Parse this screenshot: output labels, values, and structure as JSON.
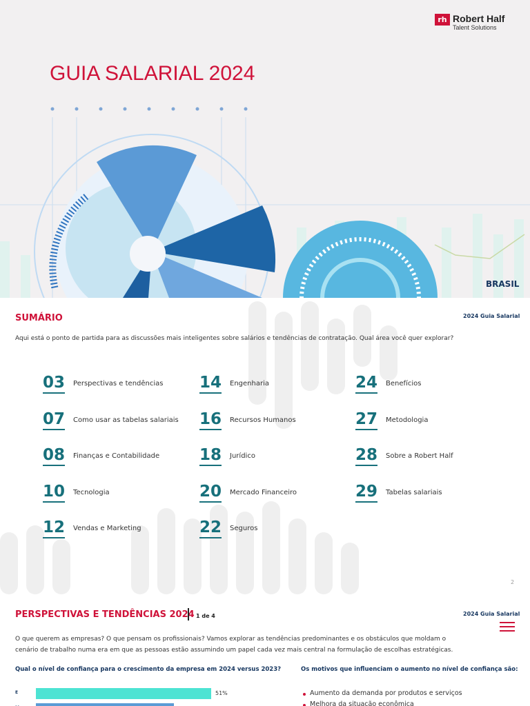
{
  "logo": {
    "brand": "Robert Half",
    "sub": "Talent Solutions"
  },
  "cover": {
    "title": "GUIA SALARIAL 2024",
    "country": "BRASIL"
  },
  "summary": {
    "title": "SUMÁRIO",
    "guide": "2024 Guia Salarial",
    "intro": "Aqui está o ponto de partida para as discussões mais inteligentes sobre salários e tendências de contratação. Qual área você quer explorar?",
    "items": [
      {
        "page": "03",
        "label": "Perspectivas e tendências"
      },
      {
        "page": "07",
        "label": "Como usar as tabelas salariais"
      },
      {
        "page": "08",
        "label": "Finanças e Contabilidade"
      },
      {
        "page": "10",
        "label": "Tecnologia"
      },
      {
        "page": "12",
        "label": "Vendas e Marketing"
      },
      {
        "page": "14",
        "label": "Engenharia"
      },
      {
        "page": "16",
        "label": "Recursos Humanos"
      },
      {
        "page": "18",
        "label": "Jurídico"
      },
      {
        "page": "20",
        "label": "Mercado Financeiro"
      },
      {
        "page": "22",
        "label": "Seguros"
      },
      {
        "page": "24",
        "label": "Benefícios"
      },
      {
        "page": "27",
        "label": "Metodologia"
      },
      {
        "page": "28",
        "label": "Sobre a Robert Half"
      },
      {
        "page": "29",
        "label": "Tabelas salariais"
      }
    ],
    "page_number": "2"
  },
  "perspectives": {
    "title": "PERSPECTIVAS E TENDÊNCIAS 2024",
    "pager": "1 de 4",
    "guide": "2024 Guia Salarial",
    "intro": "O que querem as empresas? O que pensam os profissionais? Vamos explorar as tendências predominantes e os obstáculos que moldam o cenário de trabalho numa era em que as pessoas estão assumindo um papel cada vez mais central na formulação de escolhas estratégicas.",
    "question": "Qual o nível de confiança para o crescimento da empresa em 2024 versus 2023?",
    "bars": [
      {
        "label": "E",
        "value": 51,
        "value_label": "51%"
      },
      {
        "label": "M"
      }
    ],
    "reasons_title": "Os motivos que influenciam o aumento no nível de confiança são:",
    "reasons": [
      "Aumento da demanda por produtos e serviços",
      "Melhora da situação econômica"
    ]
  }
}
